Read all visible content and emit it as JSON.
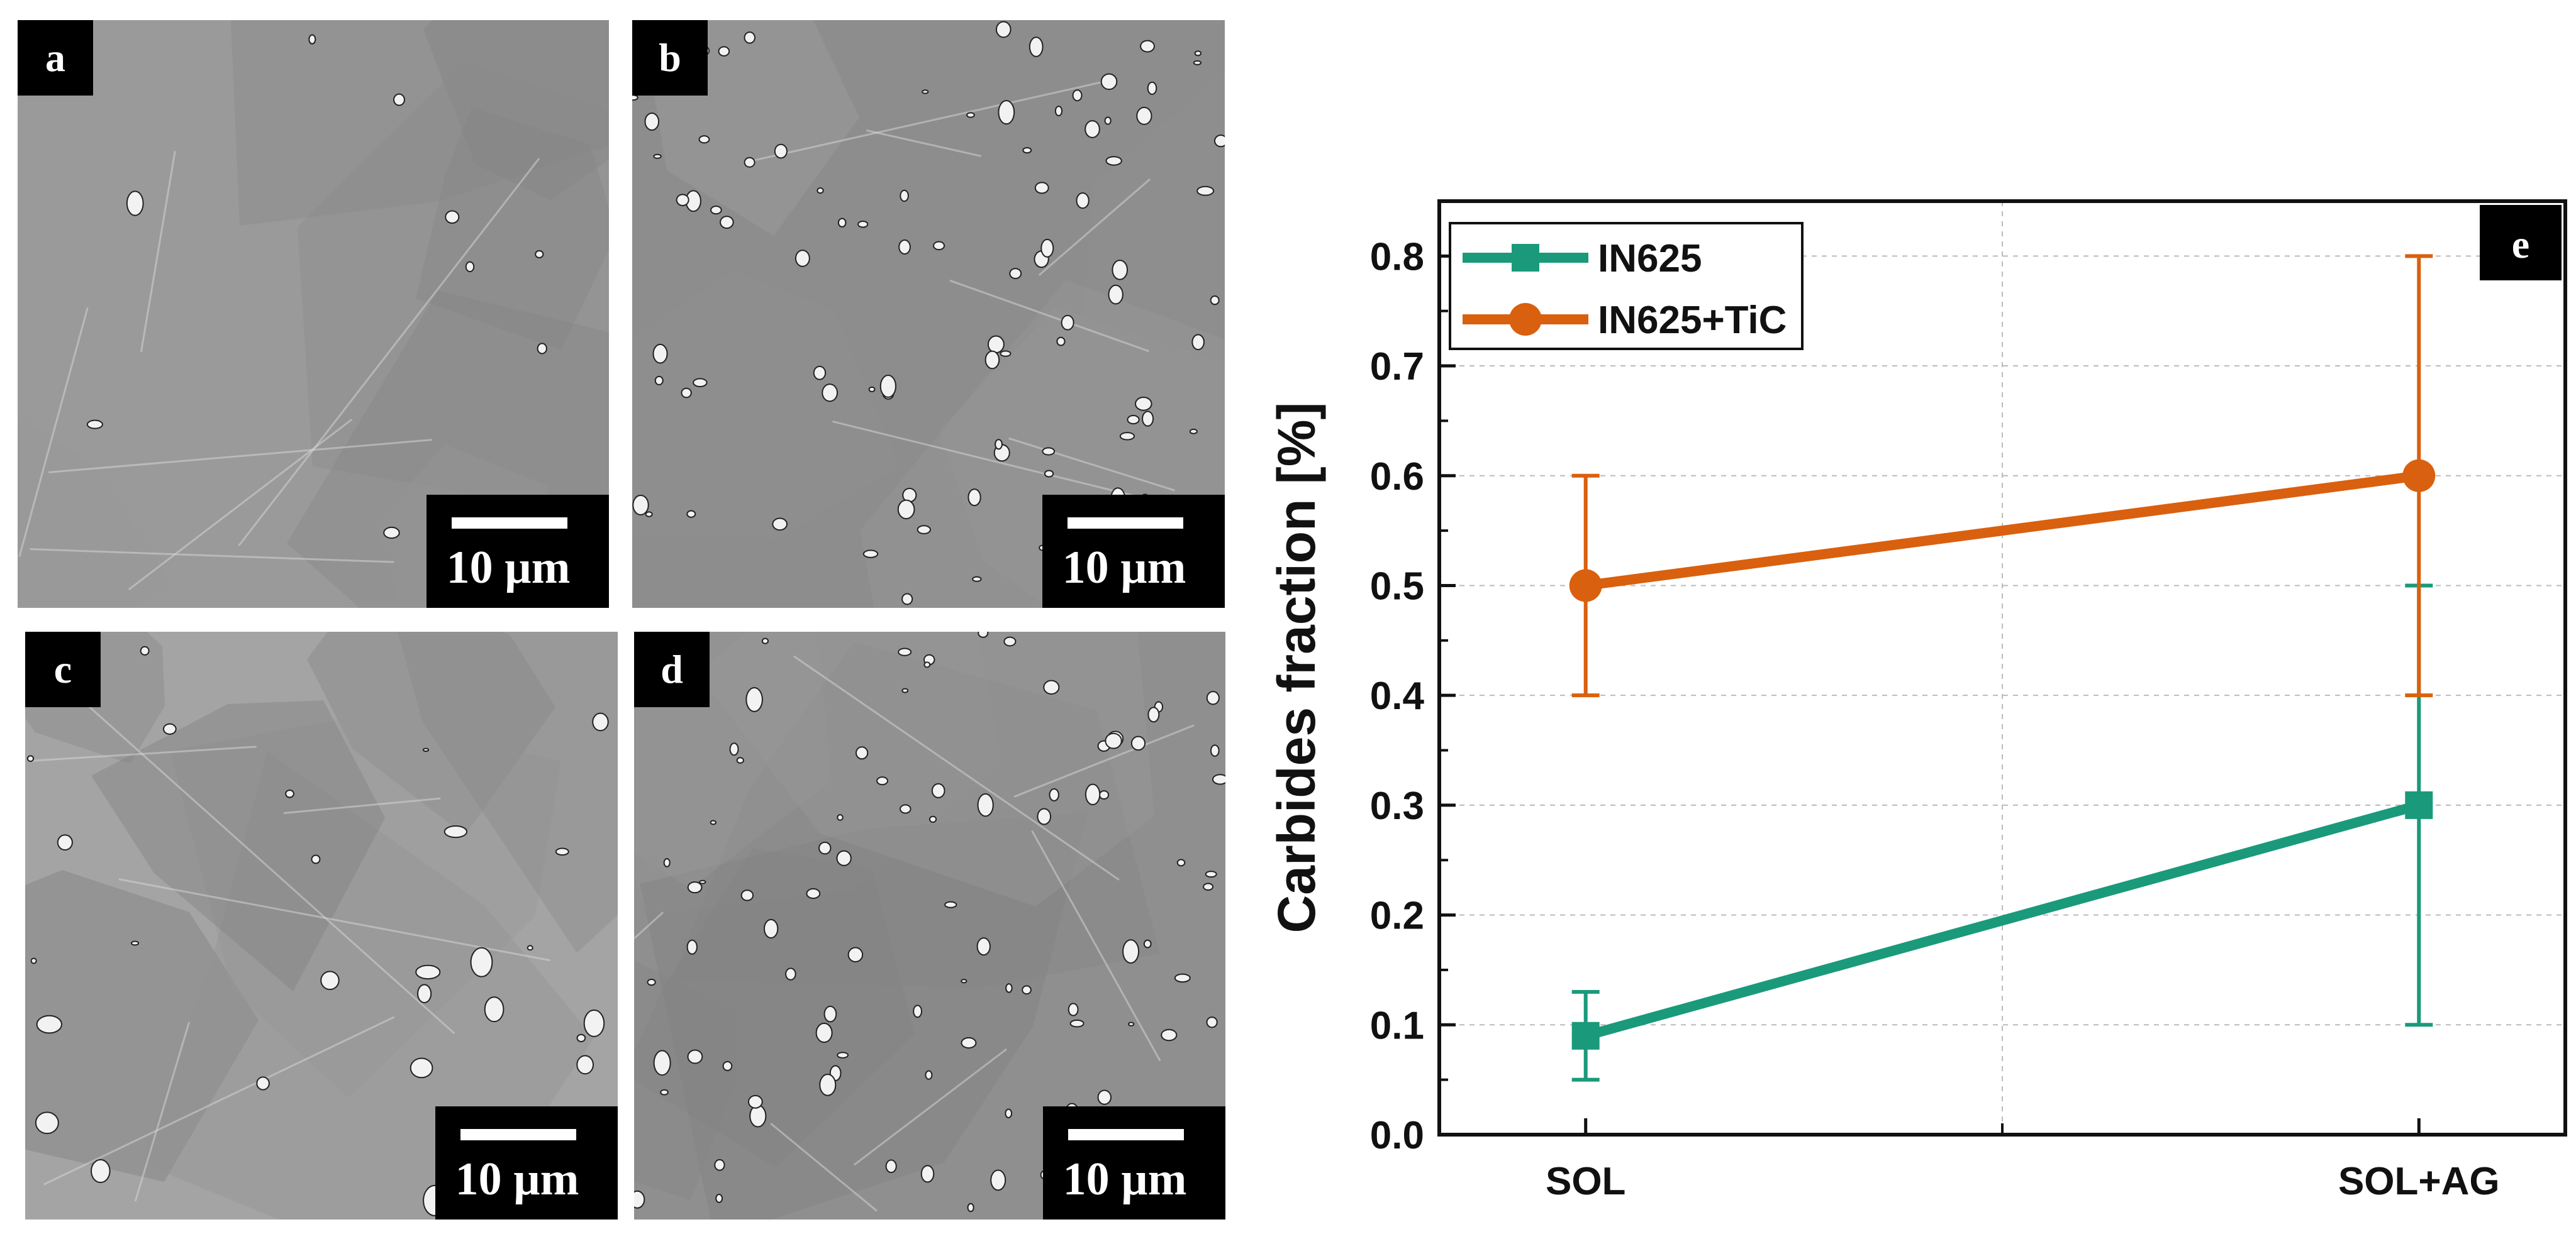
{
  "micrographs": [
    {
      "label": "a",
      "scale_text": "10 µm",
      "tone": "#9a9a9a"
    },
    {
      "label": "b",
      "scale_text": "10 µm",
      "tone": "#8d8d8d"
    },
    {
      "label": "c",
      "scale_text": "10 µm",
      "tone": "#a4a4a4"
    },
    {
      "label": "d",
      "scale_text": "10 µm",
      "tone": "#8f8f8f"
    }
  ],
  "chart_panel_label": "e",
  "chart_data": {
    "type": "line",
    "categories": [
      "SOL",
      "SOL+AG"
    ],
    "series": [
      {
        "name": "IN625",
        "values": [
          0.09,
          0.3
        ],
        "err_low": [
          0.05,
          0.1
        ],
        "err_high": [
          0.13,
          0.5
        ],
        "color": "#1a9a7a",
        "marker": "square"
      },
      {
        "name": "IN625+TiC",
        "values": [
          0.5,
          0.6
        ],
        "err_low": [
          0.4,
          0.4
        ],
        "err_high": [
          0.6,
          0.8
        ],
        "color": "#d9600e",
        "marker": "circle"
      }
    ],
    "ylabel": "Carbides fraction [%]",
    "xlabel": "",
    "ylim": [
      0.0,
      0.85
    ],
    "yticks": [
      "0.0",
      "0.1",
      "0.2",
      "0.3",
      "0.4",
      "0.5",
      "0.6",
      "0.7",
      "0.8"
    ],
    "grid": true,
    "legend_position": "top-left"
  }
}
